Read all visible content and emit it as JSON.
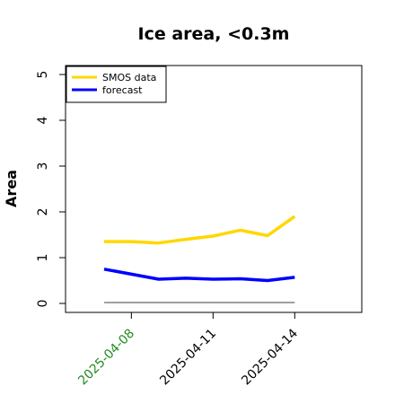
{
  "chart_data": {
    "type": "line",
    "title": "Ice area, <0.3m",
    "ylabel": "Area",
    "xlabel": "",
    "ylim": [
      0,
      5
    ],
    "yticks": [
      0,
      1,
      2,
      3,
      4,
      5
    ],
    "x": [
      "2025-04-07",
      "2025-04-08",
      "2025-04-09",
      "2025-04-10",
      "2025-04-11",
      "2025-04-12",
      "2025-04-13",
      "2025-04-14"
    ],
    "xticks": [
      {
        "label": "2025-04-08",
        "color": "#228b22"
      },
      {
        "label": "2025-04-11",
        "color": "#000000"
      },
      {
        "label": "2025-04-14",
        "color": "#000000"
      }
    ],
    "series": [
      {
        "name": "SMOS data",
        "color": "#ffd700",
        "values": [
          1.35,
          1.35,
          1.32,
          1.4,
          1.47,
          1.6,
          1.48,
          1.9
        ]
      },
      {
        "name": "forecast",
        "color": "#0000ff",
        "values": [
          0.75,
          0.64,
          0.53,
          0.55,
          0.53,
          0.54,
          0.5,
          0.57
        ]
      }
    ],
    "baseline": {
      "value": 0.02,
      "color": "#808080"
    },
    "legend_position": "top-left",
    "grid": false
  }
}
